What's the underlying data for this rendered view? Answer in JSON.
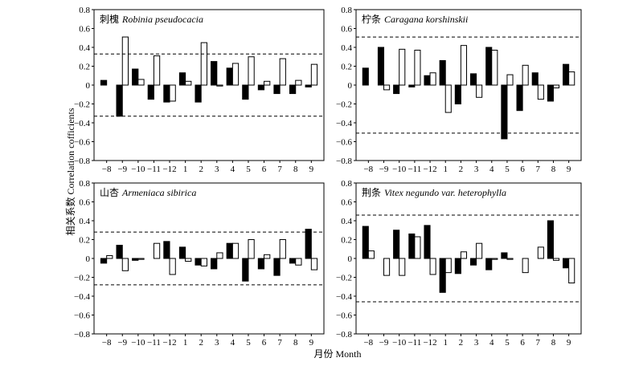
{
  "figure": {
    "ylabel": "相关系数 Correlation cofficients",
    "xlabel": "月份 Month"
  },
  "chart_data": [
    {
      "type": "bar",
      "title_cn": "刺槐",
      "title_latin": "Robinia pseudocacia",
      "categories": [
        "−8",
        "−9",
        "−10",
        "−11",
        "−12",
        "1",
        "2",
        "3",
        "4",
        "5",
        "6",
        "7",
        "8",
        "9"
      ],
      "ylim": [
        -0.8,
        0.8
      ],
      "yticks": [
        0.8,
        0.6,
        0.4,
        0.2,
        0,
        -0.2,
        -0.4,
        -0.6,
        -0.8
      ],
      "yticklabels": [
        "0.8",
        "0.6",
        "0.4",
        "0.2",
        "0",
        "−0.2",
        "−0.4",
        "−0.6",
        "−0.8"
      ],
      "grid": false,
      "reference_lines": [
        0.33,
        -0.33
      ],
      "series": [
        {
          "fill": "#000000",
          "values": [
            0.05,
            -0.33,
            0.17,
            -0.15,
            -0.18,
            0.13,
            -0.18,
            0.25,
            0.18,
            -0.15,
            -0.05,
            -0.09,
            -0.09,
            -0.02
          ]
        },
        {
          "fill": "#ffffff",
          "values": [
            0.0,
            0.51,
            0.06,
            0.31,
            -0.17,
            0.04,
            0.45,
            -0.01,
            0.23,
            0.3,
            0.04,
            0.28,
            0.05,
            0.22
          ]
        }
      ]
    },
    {
      "type": "bar",
      "title_cn": "柠条",
      "title_latin": "Caragana korshinskii",
      "categories": [
        "−8",
        "−9",
        "−10",
        "−11",
        "−12",
        "1",
        "2",
        "3",
        "4",
        "5",
        "6",
        "7",
        "8",
        "9"
      ],
      "ylim": [
        -0.8,
        0.8
      ],
      "yticks": [
        0.8,
        0.6,
        0.4,
        0.2,
        0,
        -0.2,
        -0.4,
        -0.6,
        -0.8
      ],
      "yticklabels": [
        "0.8",
        "0.6",
        "0.4",
        "0.2",
        "0",
        "−0.2",
        "−0.4",
        "−0.6",
        "−0.8"
      ],
      "grid": false,
      "reference_lines": [
        0.51,
        -0.51
      ],
      "series": [
        {
          "fill": "#000000",
          "values": [
            0.18,
            0.4,
            -0.09,
            -0.02,
            0.1,
            0.26,
            -0.2,
            0.12,
            0.4,
            -0.57,
            -0.27,
            0.13,
            -0.17,
            0.22
          ]
        },
        {
          "fill": "#ffffff",
          "values": [
            0.0,
            -0.05,
            0.38,
            0.37,
            0.13,
            -0.29,
            0.42,
            -0.13,
            0.37,
            0.11,
            0.21,
            -0.15,
            -0.03,
            0.14
          ]
        }
      ]
    },
    {
      "type": "bar",
      "title_cn": "山杏",
      "title_latin": "Armeniaca sibirica",
      "categories": [
        "−8",
        "−9",
        "−10",
        "−11",
        "−12",
        "1",
        "2",
        "3",
        "4",
        "5",
        "6",
        "7",
        "8",
        "9"
      ],
      "ylim": [
        -0.8,
        0.8
      ],
      "yticks": [
        0.8,
        0.6,
        0.4,
        0.2,
        0,
        -0.2,
        -0.4,
        -0.6,
        -0.8
      ],
      "yticklabels": [
        "0.8",
        "0.6",
        "0.4",
        "0.2",
        "0",
        "−0.2",
        "−0.4",
        "−0.6",
        "−0.8"
      ],
      "grid": false,
      "reference_lines": [
        0.28,
        -0.28
      ],
      "series": [
        {
          "fill": "#000000",
          "values": [
            -0.05,
            0.14,
            -0.02,
            0.0,
            0.18,
            0.12,
            -0.07,
            -0.11,
            0.16,
            -0.24,
            -0.11,
            -0.18,
            -0.05,
            0.31
          ]
        },
        {
          "fill": "#ffffff",
          "values": [
            0.03,
            -0.13,
            -0.01,
            0.16,
            -0.17,
            -0.03,
            -0.08,
            0.06,
            0.16,
            0.2,
            0.04,
            0.2,
            -0.07,
            -0.12
          ]
        }
      ]
    },
    {
      "type": "bar",
      "title_cn": "荆条",
      "title_latin": "Vitex negundo var. heterophylla",
      "categories": [
        "−8",
        "−9",
        "−10",
        "−11",
        "−12",
        "1",
        "2",
        "3",
        "4",
        "5",
        "6",
        "7",
        "8",
        "9"
      ],
      "ylim": [
        -0.8,
        0.8
      ],
      "yticks": [
        0.8,
        0.6,
        0.4,
        0.2,
        0,
        -0.2,
        -0.4,
        -0.6,
        -0.8
      ],
      "yticklabels": [
        "0.8",
        "0.6",
        "0.4",
        "0.2",
        "0",
        "−0.2",
        "−0.4",
        "−0.6",
        "−0.8"
      ],
      "grid": false,
      "reference_lines": [
        0.46,
        -0.46
      ],
      "series": [
        {
          "fill": "#000000",
          "values": [
            0.34,
            0.0,
            0.3,
            0.26,
            0.35,
            -0.36,
            -0.16,
            -0.07,
            -0.12,
            0.06,
            0.0,
            0.0,
            0.4,
            -0.1
          ]
        },
        {
          "fill": "#ffffff",
          "values": [
            0.08,
            -0.18,
            -0.18,
            0.23,
            -0.17,
            -0.15,
            0.07,
            0.16,
            -0.01,
            -0.01,
            -0.15,
            0.12,
            -0.02,
            -0.26
          ]
        }
      ]
    }
  ]
}
